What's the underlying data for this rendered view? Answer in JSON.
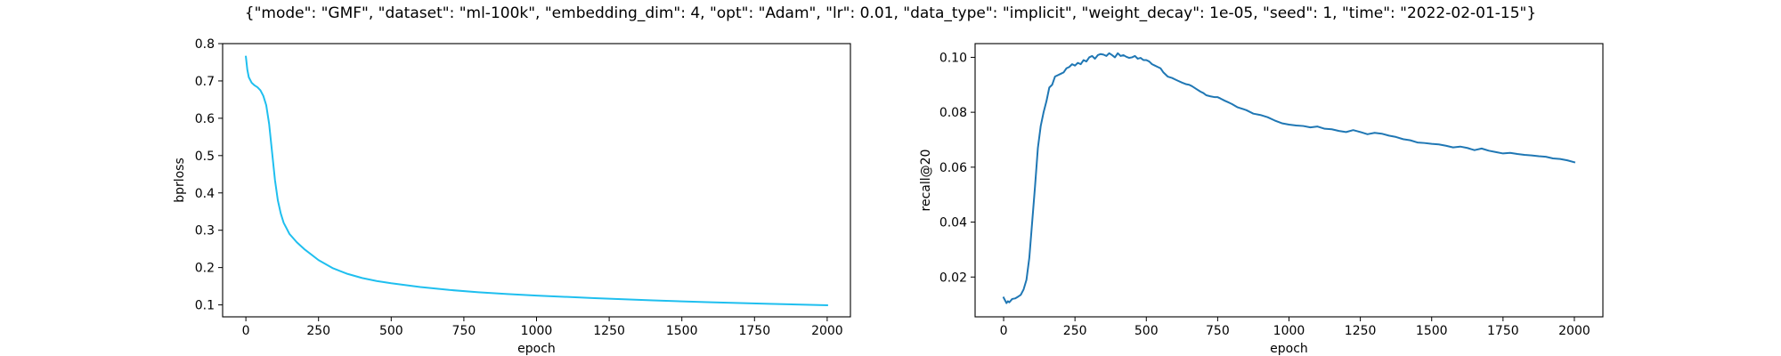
{
  "figure": {
    "suptitle": "{\"mode\": \"GMF\", \"dataset\": \"ml-100k\", \"embedding_dim\": 4, \"opt\": \"Adam\", \"lr\": 0.01, \"data_type\": \"implicit\", \"weight_decay\": 1e-05, \"seed\": 1, \"time\": \"2022-02-01-15\"}"
  },
  "chart_data": [
    {
      "type": "line",
      "title": "",
      "xlabel": "epoch",
      "ylabel": "bprloss",
      "xlim": [
        -80,
        2080
      ],
      "ylim": [
        0.068,
        0.8
      ],
      "xticks": [
        0,
        250,
        500,
        750,
        1000,
        1250,
        1500,
        1750,
        2000
      ],
      "yticks": [
        0.1,
        0.2,
        0.3,
        0.4,
        0.5,
        0.6,
        0.7,
        0.8
      ],
      "ytick_labels": [
        "0.1",
        "0.2",
        "0.3",
        "0.4",
        "0.5",
        "0.6",
        "0.7",
        "0.8"
      ],
      "grid": false,
      "color": "#1fbfef",
      "series": [
        {
          "x": [
            0,
            5,
            10,
            20,
            30,
            40,
            50,
            60,
            70,
            80,
            90,
            100,
            110,
            120,
            130,
            140,
            150,
            175,
            200,
            250,
            300,
            350,
            400,
            450,
            500,
            600,
            700,
            800,
            900,
            1000,
            1200,
            1400,
            1600,
            1800,
            2000
          ],
          "y": [
            0.765,
            0.73,
            0.71,
            0.695,
            0.688,
            0.683,
            0.675,
            0.66,
            0.635,
            0.585,
            0.51,
            0.435,
            0.38,
            0.345,
            0.32,
            0.305,
            0.29,
            0.268,
            0.25,
            0.22,
            0.198,
            0.183,
            0.172,
            0.164,
            0.158,
            0.148,
            0.14,
            0.134,
            0.129,
            0.125,
            0.118,
            0.112,
            0.107,
            0.103,
            0.099
          ]
        }
      ]
    },
    {
      "type": "line",
      "title": "",
      "xlabel": "epoch",
      "ylabel": "recall@20",
      "xlim": [
        -100,
        2100
      ],
      "ylim": [
        0.0055,
        0.105
      ],
      "xticks": [
        0,
        250,
        500,
        750,
        1000,
        1250,
        1500,
        1750,
        2000
      ],
      "yticks": [
        0.02,
        0.04,
        0.06,
        0.08,
        0.1
      ],
      "ytick_labels": [
        "0.02",
        "0.04",
        "0.06",
        "0.08",
        "0.10"
      ],
      "grid": false,
      "color": "#1f77b4",
      "series": [
        {
          "x": [
            0,
            5,
            10,
            15,
            20,
            30,
            40,
            50,
            60,
            70,
            80,
            90,
            100,
            110,
            120,
            130,
            140,
            150,
            160,
            170,
            180,
            190,
            200,
            210,
            220,
            230,
            240,
            250,
            260,
            270,
            280,
            290,
            300,
            310,
            320,
            330,
            340,
            350,
            360,
            370,
            380,
            390,
            400,
            410,
            420,
            430,
            440,
            450,
            460,
            470,
            480,
            490,
            500,
            510,
            520,
            530,
            540,
            550,
            560,
            575,
            590,
            600,
            610,
            625,
            640,
            650,
            660,
            675,
            690,
            700,
            710,
            725,
            740,
            750,
            760,
            775,
            790,
            800,
            820,
            850,
            875,
            900,
            925,
            950,
            975,
            1000,
            1025,
            1050,
            1075,
            1100,
            1125,
            1150,
            1175,
            1200,
            1225,
            1250,
            1275,
            1300,
            1325,
            1350,
            1375,
            1400,
            1425,
            1450,
            1475,
            1500,
            1525,
            1550,
            1575,
            1600,
            1625,
            1650,
            1675,
            1700,
            1725,
            1750,
            1775,
            1800,
            1825,
            1850,
            1875,
            1900,
            1925,
            1950,
            1975,
            2000
          ],
          "y": [
            0.0125,
            0.0115,
            0.0105,
            0.0112,
            0.0108,
            0.012,
            0.0122,
            0.0128,
            0.0135,
            0.0155,
            0.019,
            0.027,
            0.04,
            0.053,
            0.067,
            0.075,
            0.08,
            0.084,
            0.089,
            0.09,
            0.093,
            0.0935,
            0.094,
            0.0945,
            0.096,
            0.0965,
            0.0975,
            0.097,
            0.098,
            0.0975,
            0.099,
            0.0985,
            0.1,
            0.1005,
            0.0995,
            0.1008,
            0.1012,
            0.101,
            0.1005,
            0.1015,
            0.1008,
            0.1,
            0.1015,
            0.1005,
            0.1008,
            0.1002,
            0.0998,
            0.1,
            0.1005,
            0.0995,
            0.0998,
            0.099,
            0.099,
            0.0985,
            0.0975,
            0.097,
            0.0965,
            0.096,
            0.0945,
            0.093,
            0.0925,
            0.092,
            0.0915,
            0.0908,
            0.0902,
            0.09,
            0.0895,
            0.0885,
            0.0875,
            0.087,
            0.0862,
            0.0858,
            0.0855,
            0.0855,
            0.085,
            0.0842,
            0.0835,
            0.083,
            0.0818,
            0.0808,
            0.0795,
            0.079,
            0.0782,
            0.077,
            0.076,
            0.0755,
            0.0752,
            0.075,
            0.0745,
            0.0748,
            0.074,
            0.0738,
            0.0732,
            0.0728,
            0.0735,
            0.0728,
            0.072,
            0.0725,
            0.0722,
            0.0715,
            0.071,
            0.0702,
            0.0698,
            0.069,
            0.0688,
            0.0685,
            0.0683,
            0.0678,
            0.0672,
            0.0675,
            0.067,
            0.0662,
            0.0668,
            0.066,
            0.0655,
            0.065,
            0.0652,
            0.0648,
            0.0645,
            0.0643,
            0.064,
            0.0638,
            0.0632,
            0.063,
            0.0625,
            0.0618
          ]
        }
      ]
    }
  ]
}
